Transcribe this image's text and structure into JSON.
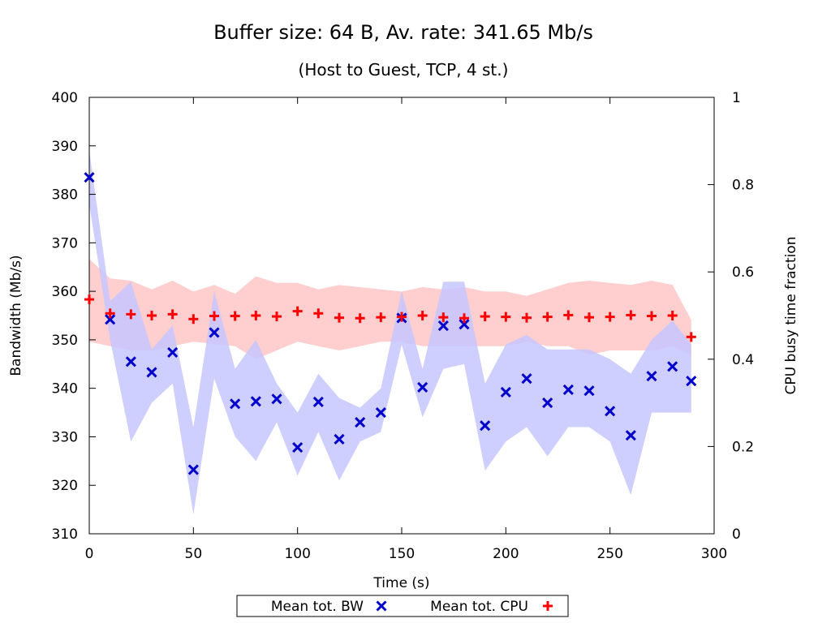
{
  "chart_data": {
    "type": "scatter",
    "title": "Buffer size: 64 B, Av. rate: 341.65 Mb/s",
    "subtitle": "(Host to Guest, TCP, 4 st.)",
    "xlabel": "Time (s)",
    "ylabel": "Bandwidth (Mb/s)",
    "y2label": "CPU busy time fraction",
    "xlim": [
      0,
      300
    ],
    "ylim": [
      310,
      400
    ],
    "y2lim": [
      0,
      1
    ],
    "x_ticks": [
      "0",
      "50",
      "100",
      "150",
      "200",
      "250",
      "300"
    ],
    "y_ticks": [
      "310",
      "320",
      "330",
      "340",
      "350",
      "360",
      "370",
      "380",
      "390",
      "400"
    ],
    "y2_ticks": [
      "0",
      "0.2",
      "0.4",
      "0.6",
      "0.8",
      "1"
    ],
    "grid": false,
    "legend_position": "bottom",
    "x": [
      0,
      10,
      20,
      30,
      40,
      50,
      60,
      70,
      80,
      90,
      100,
      110,
      120,
      130,
      140,
      150,
      160,
      170,
      180,
      190,
      200,
      210,
      220,
      230,
      240,
      250,
      260,
      270,
      280,
      289
    ],
    "series": [
      {
        "name": "Mean tot. BW",
        "axis": "left",
        "marker": "x",
        "color": "#0000cc",
        "band_color": "#c6c6ff",
        "values": [
          383.5,
          354.2,
          345.5,
          343.3,
          347.4,
          323.2,
          351.5,
          336.8,
          337.3,
          337.8,
          327.8,
          337.2,
          329.5,
          333.0,
          335.0,
          354.5,
          340.2,
          352.9,
          353.2,
          332.3,
          339.2,
          342.0,
          337.0,
          339.7,
          339.5,
          335.3,
          330.3,
          342.5,
          344.5,
          341.5
        ],
        "band_upper": [
          389,
          358,
          362,
          348,
          353,
          332,
          360,
          344,
          350,
          341,
          335,
          343,
          338,
          336,
          340,
          360,
          344,
          362,
          362,
          341,
          349,
          351,
          348,
          348,
          348,
          346,
          343,
          350,
          354,
          349
        ],
        "band_lower": [
          378,
          350,
          329,
          337,
          341,
          314,
          342,
          330,
          325,
          333,
          322,
          331,
          321,
          329,
          331,
          349,
          334,
          344,
          345,
          323,
          329,
          332,
          326,
          332,
          332,
          329,
          318,
          335,
          335,
          335
        ]
      },
      {
        "name": "Mean tot. CPU",
        "axis": "right",
        "marker": "+",
        "color": "#ff0000",
        "band_color": "#ffc6c6",
        "values": [
          0.537,
          0.505,
          0.503,
          0.5,
          0.503,
          0.492,
          0.499,
          0.499,
          0.5,
          0.498,
          0.51,
          0.505,
          0.495,
          0.494,
          0.496,
          0.497,
          0.5,
          0.496,
          0.494,
          0.498,
          0.497,
          0.495,
          0.497,
          0.501,
          0.496,
          0.497,
          0.501,
          0.499,
          0.5,
          0.451
        ],
        "band_upper": [
          0.63,
          0.585,
          0.58,
          0.56,
          0.58,
          0.555,
          0.57,
          0.55,
          0.59,
          0.575,
          0.575,
          0.56,
          0.57,
          0.565,
          0.56,
          0.555,
          0.565,
          0.56,
          0.565,
          0.555,
          0.555,
          0.545,
          0.56,
          0.575,
          0.58,
          0.575,
          0.57,
          0.58,
          0.57,
          0.49
        ],
        "band_lower": [
          0.44,
          0.43,
          0.42,
          0.42,
          0.43,
          0.44,
          0.435,
          0.43,
          0.4,
          0.42,
          0.44,
          0.43,
          0.42,
          0.43,
          0.44,
          0.44,
          0.43,
          0.43,
          0.43,
          0.43,
          0.43,
          0.44,
          0.43,
          0.43,
          0.41,
          0.42,
          0.42,
          0.42,
          0.43,
          0.41
        ]
      }
    ]
  }
}
